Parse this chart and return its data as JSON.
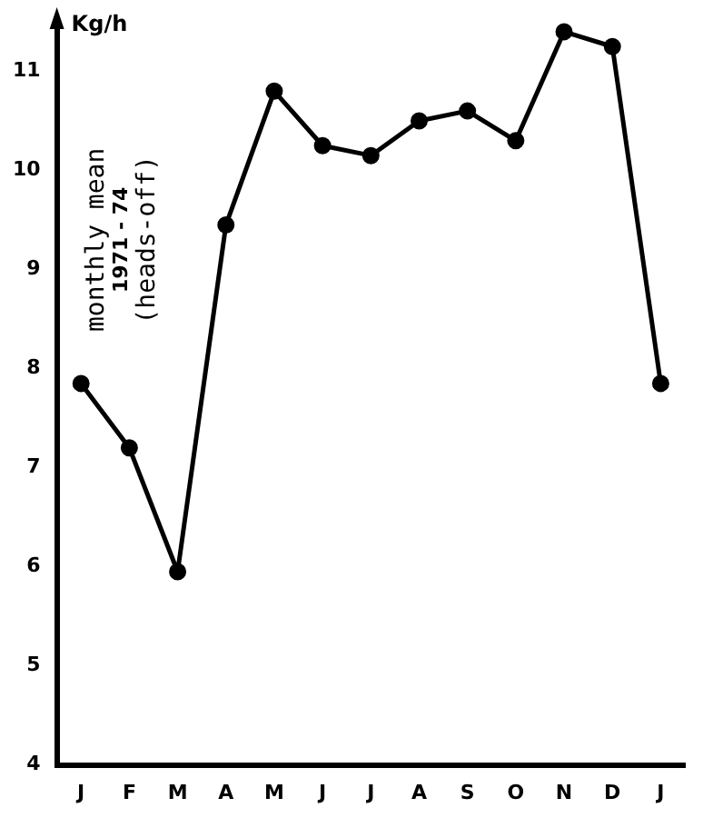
{
  "chart_data": {
    "type": "line",
    "ylabel": "Kg/h",
    "annotations": [
      "monthly mean\n1971 - 74\n(heads-off)"
    ],
    "categories": [
      "J",
      "F",
      "M",
      "A",
      "M",
      "J",
      "J",
      "A",
      "S",
      "O",
      "N",
      "D",
      "J"
    ],
    "series": [
      {
        "color": "#000000",
        "values": [
          7.85,
          7.2,
          5.95,
          9.45,
          10.8,
          10.25,
          10.15,
          10.5,
          10.6,
          10.3,
          11.4,
          11.25,
          7.85
        ]
      }
    ],
    "ylim": [
      4,
      11.5
    ],
    "yticks": [
      4,
      5,
      6,
      7,
      8,
      9,
      10,
      11
    ],
    "grid": false,
    "legend": false,
    "marker": "circle",
    "line_style": "solid"
  }
}
